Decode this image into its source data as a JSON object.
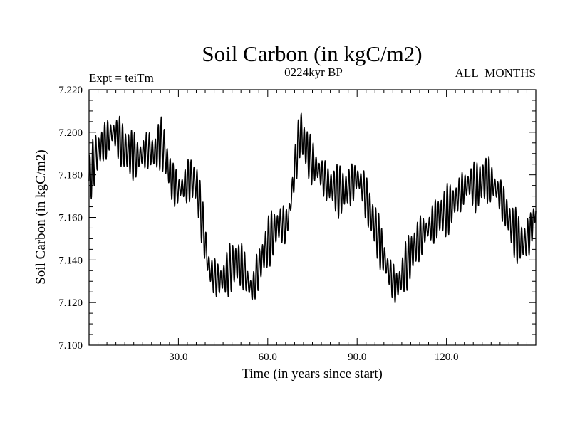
{
  "chart_data": {
    "type": "line",
    "title": "Soil Carbon (in kgC/m2)",
    "subtitle_left": "Expt = teiTm",
    "subtitle_center": "0224kyr BP",
    "subtitle_right": "ALL_MONTHS",
    "xlabel": "Time (in years since start)",
    "ylabel": "Soil Carbon (in kgC/m2)",
    "xlim": [
      0,
      150
    ],
    "ylim": [
      7.1,
      7.22
    ],
    "x_ticks": [
      30,
      60,
      90,
      120
    ],
    "x_tick_labels": [
      "30.0",
      "60.0",
      "90.0",
      "120.0"
    ],
    "y_ticks": [
      7.1,
      7.12,
      7.14,
      7.16,
      7.18,
      7.2,
      7.22
    ],
    "y_tick_labels": [
      "7.100",
      "7.120",
      "7.140",
      "7.160",
      "7.180",
      "7.200",
      "7.220"
    ],
    "seasonal_amplitude": 0.008,
    "series": [
      {
        "name": "Soil Carbon",
        "x": [
          0,
          2,
          4,
          6,
          8,
          10,
          12,
          14,
          16,
          18,
          20,
          22,
          24,
          25,
          26,
          28,
          30,
          32,
          34,
          36,
          37,
          38,
          39,
          40,
          41,
          42,
          44,
          46,
          48,
          50,
          52,
          53,
          54,
          55,
          56,
          58,
          60,
          62,
          64,
          66,
          67,
          68,
          69,
          70,
          71,
          72,
          74,
          76,
          78,
          80,
          82,
          84,
          86,
          88,
          90,
          92,
          94,
          96,
          98,
          100,
          102,
          103,
          104,
          106,
          108,
          110,
          112,
          114,
          116,
          118,
          120,
          122,
          124,
          126,
          128,
          130,
          132,
          134,
          136,
          138,
          140,
          142,
          144,
          146,
          148,
          150
        ],
        "y": [
          7.177,
          7.188,
          7.193,
          7.197,
          7.2,
          7.197,
          7.192,
          7.19,
          7.188,
          7.19,
          7.192,
          7.19,
          7.195,
          7.193,
          7.187,
          7.176,
          7.173,
          7.175,
          7.178,
          7.176,
          7.168,
          7.158,
          7.148,
          7.138,
          7.134,
          7.132,
          7.13,
          7.133,
          7.137,
          7.139,
          7.136,
          7.131,
          7.127,
          7.126,
          7.132,
          7.14,
          7.148,
          7.153,
          7.157,
          7.156,
          7.16,
          7.17,
          7.182,
          7.192,
          7.201,
          7.196,
          7.188,
          7.184,
          7.18,
          7.176,
          7.174,
          7.172,
          7.173,
          7.175,
          7.179,
          7.174,
          7.164,
          7.156,
          7.146,
          7.137,
          7.13,
          7.127,
          7.129,
          7.136,
          7.142,
          7.148,
          7.152,
          7.155,
          7.158,
          7.161,
          7.163,
          7.166,
          7.17,
          7.174,
          7.176,
          7.174,
          7.177,
          7.178,
          7.175,
          7.17,
          7.163,
          7.155,
          7.15,
          7.148,
          7.152,
          7.163
        ]
      }
    ]
  }
}
